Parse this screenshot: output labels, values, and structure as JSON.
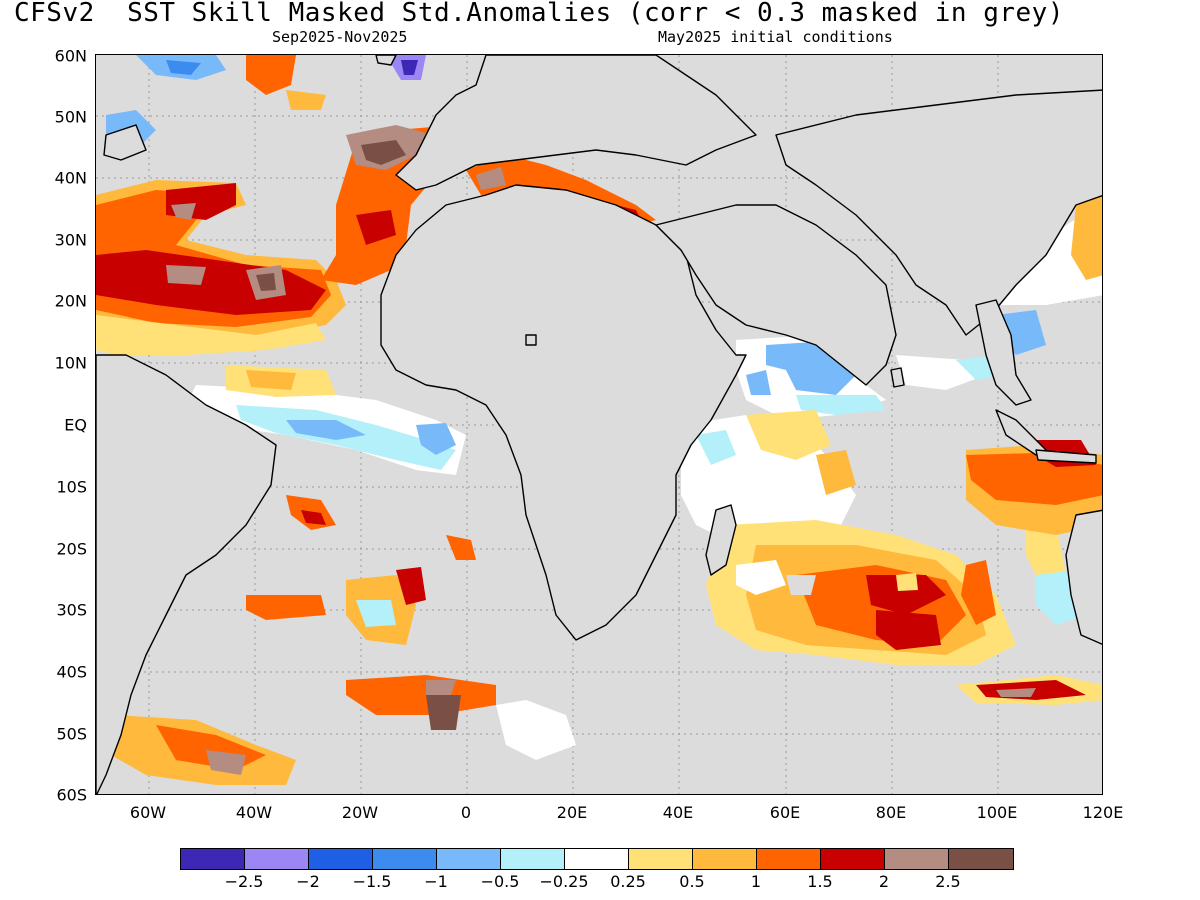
{
  "header": {
    "title": "CFSv2  SST Skill Masked Std.Anomalies (corr < 0.3 masked in grey)",
    "period": "Sep2025-Nov2025",
    "initial_conditions": "May2025 initial conditions"
  },
  "axes": {
    "lat_labels": [
      "60N",
      "50N",
      "40N",
      "30N",
      "20N",
      "10N",
      "EQ",
      "10S",
      "20S",
      "30S",
      "40S",
      "50S",
      "60S"
    ],
    "lon_labels": [
      "60W",
      "40W",
      "20W",
      "0",
      "20E",
      "40E",
      "60E",
      "80E",
      "100E",
      "120E"
    ]
  },
  "colorbar": {
    "colors": [
      "#3c28b4",
      "#9b86f4",
      "#1e5fe6",
      "#3c8cf0",
      "#78b9fa",
      "#b4f0fa",
      "#ffffff",
      "#ffe178",
      "#ffb93c",
      "#ff6400",
      "#c80000",
      "#b48c82",
      "#7a5046"
    ],
    "labels": [
      "-2.5",
      "-2",
      "-1.5",
      "-1",
      "-0.5",
      "-0.25",
      "0.25",
      "0.5",
      "1",
      "1.5",
      "2",
      "2.5"
    ]
  },
  "map": {
    "mask_color": "#dcdcdc",
    "lat_range": [
      -60,
      60
    ],
    "lon_range": [
      -70,
      120
    ]
  }
}
